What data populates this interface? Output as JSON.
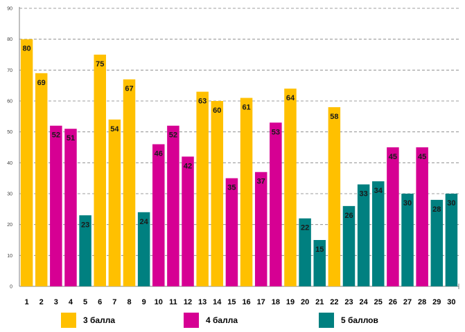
{
  "chart_data": {
    "type": "bar",
    "categories": [
      "1",
      "2",
      "3",
      "4",
      "5",
      "6",
      "7",
      "8",
      "9",
      "10",
      "11",
      "12",
      "13",
      "14",
      "15",
      "16",
      "17",
      "18",
      "19",
      "20",
      "21",
      "22",
      "23",
      "24",
      "25",
      "26",
      "27",
      "28",
      "29",
      "30"
    ],
    "values": [
      80,
      69,
      52,
      51,
      23,
      75,
      54,
      67,
      24,
      46,
      52,
      42,
      63,
      60,
      35,
      61,
      37,
      53,
      64,
      22,
      15,
      58,
      26,
      33,
      34,
      45,
      30,
      45,
      28,
      30
    ],
    "groups": [
      0,
      0,
      1,
      1,
      2,
      0,
      0,
      0,
      2,
      1,
      1,
      1,
      0,
      0,
      1,
      0,
      1,
      1,
      0,
      2,
      2,
      0,
      2,
      2,
      2,
      1,
      2,
      1,
      2,
      2
    ],
    "series": [
      {
        "name": "3 балла",
        "color": "#FFC000"
      },
      {
        "name": "4 балла",
        "color": "#D60093"
      },
      {
        "name": "5 баллов",
        "color": "#008080"
      }
    ],
    "y_ticks": [
      "0",
      "10",
      "20",
      "30",
      "40",
      "50",
      "60",
      "70",
      "80",
      "90"
    ],
    "ylim": [
      0,
      90
    ],
    "grid": true,
    "legend_position": "bottom"
  }
}
